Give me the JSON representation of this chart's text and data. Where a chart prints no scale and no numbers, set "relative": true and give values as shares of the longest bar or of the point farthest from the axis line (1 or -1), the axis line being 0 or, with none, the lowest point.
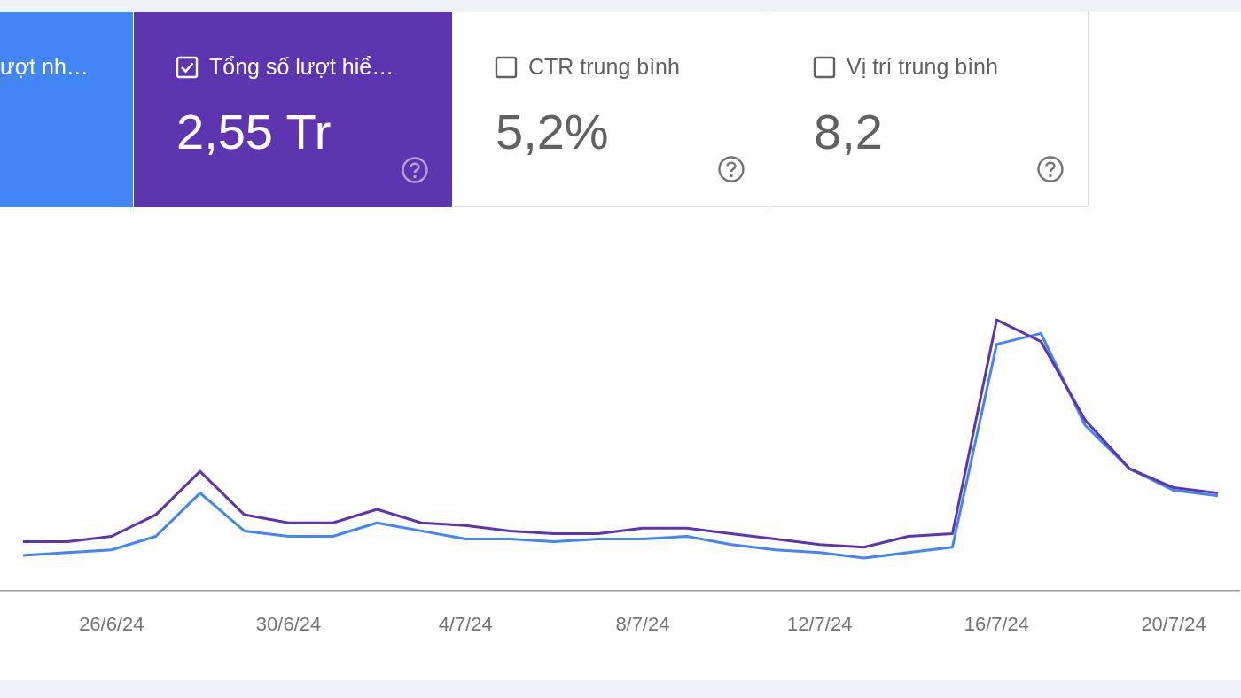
{
  "chart_data": [
    {
      "type": "other",
      "annotations": [
        "ượt nh…",
        "Tổng số lượt hiể…",
        "2,55 Tr",
        "CTR trung bình",
        "5,2%",
        "Vị trí trung bình",
        "8,2"
      ]
    },
    {
      "type": "line",
      "relative": true,
      "legend": false,
      "marker": "none",
      "categories": [
        null,
        null,
        "26/6/24",
        null,
        null,
        null,
        "30/6/24",
        null,
        null,
        null,
        "4/7/24",
        null,
        null,
        null,
        "8/7/24",
        null,
        null,
        null,
        "12/7/24",
        null,
        null,
        null,
        "16/7/24",
        null,
        null,
        null,
        "20/7/24",
        null
      ],
      "series": [
        {
          "color": "#5e35b1",
          "values": [
            0.18,
            0.18,
            0.2,
            0.28,
            0.44,
            0.28,
            0.25,
            0.25,
            0.3,
            0.25,
            0.24,
            0.22,
            0.21,
            0.21,
            0.23,
            0.23,
            0.21,
            0.19,
            0.17,
            0.16,
            0.2,
            0.21,
            1,
            0.92,
            0.63,
            0.45,
            0.38,
            0.36
          ]
        },
        {
          "color": "#4285f4",
          "values": [
            0.13,
            0.14,
            0.15,
            0.2,
            0.36,
            0.22,
            0.2,
            0.2,
            0.25,
            0.22,
            0.19,
            0.19,
            0.18,
            0.19,
            0.19,
            0.2,
            0.17,
            0.15,
            0.14,
            0.12,
            0.14,
            0.16,
            0.91,
            0.95,
            0.61,
            0.45,
            0.37,
            0.35
          ]
        }
      ]
    }
  ]
}
